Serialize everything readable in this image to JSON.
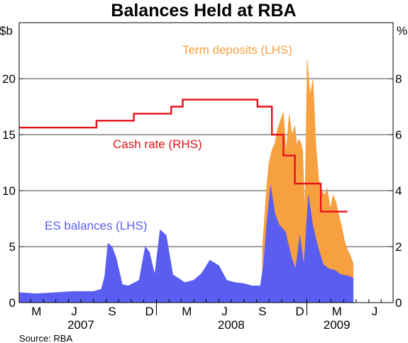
{
  "chart_data": {
    "type": "area",
    "title": "Balances Held at RBA",
    "left_unit": "$b",
    "right_unit": "%",
    "left_ylim": [
      0,
      25
    ],
    "right_ylim": [
      0,
      10
    ],
    "left_ticks": [
      "0",
      "5",
      "10",
      "15",
      "20"
    ],
    "right_ticks": [
      "0",
      "2",
      "4",
      "6",
      "8"
    ],
    "x_month_labels": [
      "M",
      "J",
      "S",
      "D",
      "M",
      "J",
      "S",
      "D",
      "M",
      "J"
    ],
    "x_years": [
      "2007",
      "2008",
      "2009"
    ],
    "grid": true,
    "series": [
      {
        "name": "Term deposits (LHS)",
        "color": "#f7a040",
        "note": "stacked total (ES balances + term deposits), $b",
        "x": [
          "2008-09-15",
          "2008-09-25",
          "2008-10-01",
          "2008-10-08",
          "2008-10-15",
          "2008-10-22",
          "2008-10-29",
          "2008-11-05",
          "2008-11-12",
          "2008-11-19",
          "2008-11-26",
          "2008-12-03",
          "2008-12-08",
          "2008-12-12",
          "2008-12-17",
          "2008-12-22",
          "2008-12-27",
          "2009-01-02",
          "2009-01-09",
          "2009-01-16",
          "2009-01-23",
          "2009-01-30",
          "2009-02-06",
          "2009-02-13",
          "2009-02-20",
          "2009-02-27",
          "2009-03-06",
          "2009-03-13",
          "2009-03-20",
          "2009-03-27",
          "2009-04-03",
          "2009-04-10",
          "2009-04-17",
          "2009-04-24"
        ],
        "values": [
          4.8,
          10.2,
          12.5,
          13.6,
          14.2,
          15.5,
          16.3,
          17.0,
          13.5,
          16.8,
          15.0,
          15.8,
          14.0,
          14.6,
          14.3,
          13.6,
          8.0,
          21.7,
          18.5,
          20.0,
          14.2,
          11.0,
          10.1,
          9.6,
          10.2,
          8.4,
          9.6,
          9.0,
          7.8,
          6.8,
          5.5,
          4.7,
          4.2,
          3.5
        ]
      },
      {
        "name": "ES balances (LHS)",
        "color": "#5a5ef0",
        "x": [
          "2007-02-01",
          "2007-03-15",
          "2007-05-01",
          "2007-06-15",
          "2007-08-01",
          "2007-08-20",
          "2007-08-28",
          "2007-09-05",
          "2007-09-15",
          "2007-09-25",
          "2007-10-10",
          "2007-10-25",
          "2007-11-20",
          "2007-12-05",
          "2007-12-15",
          "2007-12-28",
          "2008-01-10",
          "2008-01-25",
          "2008-02-10",
          "2008-03-10",
          "2008-04-01",
          "2008-04-20",
          "2008-05-10",
          "2008-06-01",
          "2008-06-20",
          "2008-07-10",
          "2008-08-01",
          "2008-08-20",
          "2008-09-10",
          "2008-09-18",
          "2008-09-25",
          "2008-10-05",
          "2008-10-15",
          "2008-10-25",
          "2008-11-10",
          "2008-11-25",
          "2008-12-05",
          "2008-12-15",
          "2008-12-25",
          "2009-01-05",
          "2009-01-15",
          "2009-01-28",
          "2009-02-10",
          "2009-02-25",
          "2009-03-10",
          "2009-03-25",
          "2009-04-10",
          "2009-04-24"
        ],
        "values": [
          0.9,
          0.8,
          0.9,
          1.0,
          1.0,
          1.2,
          2.3,
          5.3,
          5.0,
          4.0,
          1.6,
          1.5,
          2.0,
          5.0,
          4.5,
          2.5,
          6.5,
          6.0,
          2.5,
          1.8,
          2.0,
          2.6,
          3.8,
          3.3,
          2.0,
          1.8,
          1.7,
          1.5,
          1.5,
          3.5,
          6.8,
          10.5,
          8.0,
          7.0,
          6.3,
          4.0,
          3.0,
          6.0,
          3.3,
          9.6,
          7.0,
          5.0,
          3.4,
          3.0,
          2.9,
          2.5,
          2.4,
          2.2
        ]
      },
      {
        "name": "Cash rate (RHS)",
        "color": "#e8111a",
        "step": true,
        "x": [
          "2007-02-01",
          "2007-08-08",
          "2007-11-07",
          "2008-02-06",
          "2008-03-05",
          "2008-09-03",
          "2008-10-08",
          "2008-11-05",
          "2008-12-03",
          "2009-02-04",
          "2009-04-10"
        ],
        "values": [
          6.25,
          6.5,
          6.75,
          7.0,
          7.25,
          7.0,
          6.0,
          5.25,
          4.25,
          3.25,
          3.25
        ]
      }
    ],
    "annotations": [
      {
        "text": "Term deposits (LHS)",
        "color": "#f7a040"
      },
      {
        "text": "Cash rate (RHS)",
        "color": "#e8111a"
      },
      {
        "text": "ES balances (LHS)",
        "color": "#5a5ef0"
      }
    ]
  },
  "source": "Source: RBA"
}
